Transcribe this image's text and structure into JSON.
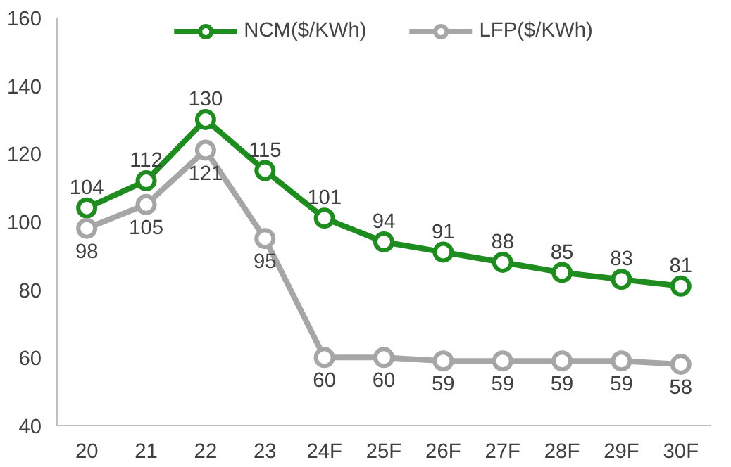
{
  "chart_data": {
    "type": "line",
    "categories": [
      "20",
      "21",
      "22",
      "23",
      "24F",
      "25F",
      "26F",
      "27F",
      "28F",
      "29F",
      "30F"
    ],
    "series": [
      {
        "name": "NCM($/KWh)",
        "color": "#1e8c1e",
        "values": [
          104,
          112,
          130,
          115,
          101,
          94,
          91,
          88,
          85,
          83,
          81
        ]
      },
      {
        "name": "LFP($/KWh)",
        "color": "#a6a6a6",
        "values": [
          98,
          105,
          121,
          95,
          60,
          60,
          59,
          59,
          59,
          59,
          58
        ]
      }
    ],
    "ylim": [
      40,
      160
    ],
    "yticks": [
      40,
      60,
      80,
      100,
      120,
      140,
      160
    ],
    "grid": false,
    "legend": "top",
    "marker": "circle",
    "line_style": "solid",
    "data_labels": true
  }
}
